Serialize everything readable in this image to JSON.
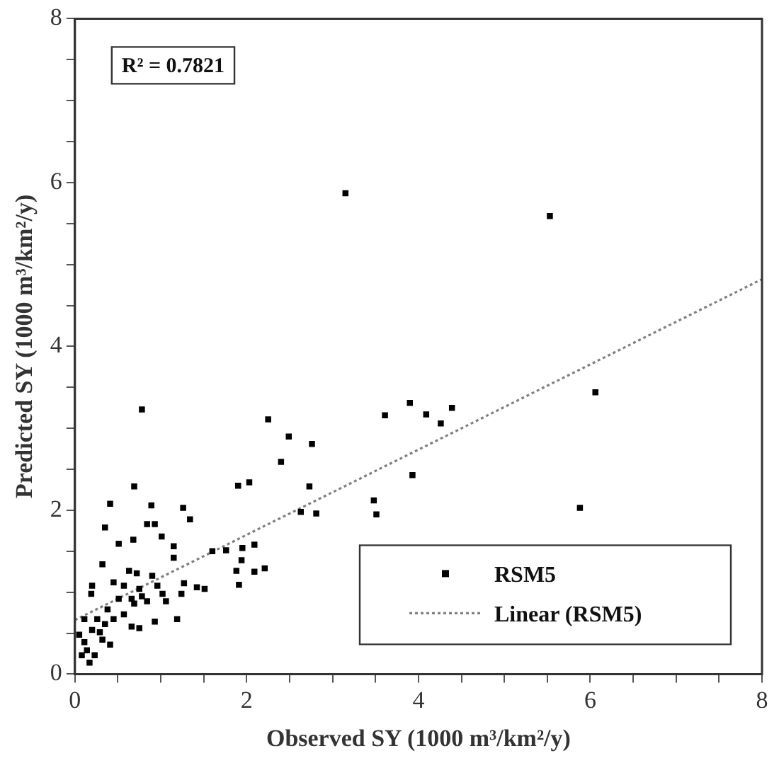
{
  "chart_data": {
    "type": "scatter",
    "xlabel": "Observed SY (1000 m³/km²/y)",
    "ylabel": "Predicted SY (1000 m³/km²/y)",
    "xlim": [
      0,
      8
    ],
    "ylim": [
      0,
      8
    ],
    "xticks": [
      0,
      {
        "value": 0.5,
        "label": null
      },
      2,
      {
        "value": 1,
        "label": null
      },
      {
        "value": 1.5,
        "label": null
      },
      {
        "value": 2.5,
        "label": null
      },
      {
        "value": 3,
        "label": null
      },
      {
        "value": 3.5,
        "label": null
      },
      4,
      {
        "value": 4.5,
        "label": null
      },
      {
        "value": 5,
        "label": null
      },
      {
        "value": 5.5,
        "label": null
      },
      6,
      {
        "value": 6.5,
        "label": null
      },
      {
        "value": 7,
        "label": null
      },
      {
        "value": 7.5,
        "label": null
      },
      8
    ],
    "yticks": [
      0,
      {
        "value": 0.5,
        "label": null
      },
      {
        "value": 1,
        "label": null
      },
      {
        "value": 1.5,
        "label": null
      },
      2,
      {
        "value": 2.5,
        "label": null
      },
      {
        "value": 3,
        "label": null
      },
      {
        "value": 3.5,
        "label": null
      },
      4,
      {
        "value": 4.5,
        "label": null
      },
      {
        "value": 5,
        "label": null
      },
      {
        "value": 5.5,
        "label": null
      },
      6,
      {
        "value": 6.5,
        "label": null
      },
      {
        "value": 7,
        "label": null
      },
      {
        "value": 7.5,
        "label": null
      },
      8
    ],
    "grid": false,
    "legend": "bottom right",
    "annotations": [
      "R² = 0.7821"
    ],
    "series": [
      {
        "name": "RSM5",
        "color": "#000000",
        "marker": "square",
        "x": [
          3.15,
          5.53,
          6.06,
          5.88,
          0.78,
          2.25,
          2.49,
          2.76,
          2.4,
          2.73,
          2.03,
          1.9,
          2.63,
          2.81,
          3.61,
          3.9,
          4.09,
          4.26,
          4.39,
          3.93,
          3.48,
          3.51,
          0.69,
          0.41,
          0.89,
          1.26,
          1.34,
          0.35,
          0.84,
          0.93,
          1.01,
          0.51,
          0.68,
          1.15,
          1.15,
          0.32,
          1.6,
          1.76,
          1.95,
          2.09,
          1.94,
          1.88,
          2.09,
          2.21,
          1.91,
          1.27,
          1.42,
          1.51,
          1.19,
          0.2,
          0.19,
          0.63,
          0.72,
          0.9,
          0.45,
          0.57,
          0.75,
          0.96,
          1.02,
          0.51,
          0.66,
          0.84,
          1.06,
          1.24,
          0.38,
          0.57,
          0.75,
          0.93,
          0.66,
          0.26,
          0.35,
          0.45,
          0.2,
          0.32,
          0.41,
          0.14,
          0.08,
          0.23,
          0.17,
          0.29,
          0.11,
          0.05,
          0.69,
          0.78,
          0.11
        ],
        "values": [
          5.87,
          5.59,
          3.44,
          2.03,
          3.23,
          3.11,
          2.9,
          2.81,
          2.59,
          2.29,
          2.34,
          2.3,
          1.98,
          1.96,
          3.16,
          3.31,
          3.17,
          3.06,
          3.25,
          2.43,
          2.12,
          1.95,
          2.29,
          2.08,
          2.06,
          2.03,
          1.89,
          1.79,
          1.83,
          1.83,
          1.68,
          1.59,
          1.64,
          1.56,
          1.42,
          1.34,
          1.5,
          1.51,
          1.54,
          1.58,
          1.39,
          1.26,
          1.25,
          1.29,
          1.09,
          1.11,
          1.06,
          1.04,
          0.67,
          1.08,
          0.98,
          1.26,
          1.23,
          1.2,
          1.12,
          1.08,
          1.04,
          1.08,
          0.98,
          0.92,
          0.92,
          0.89,
          0.89,
          0.98,
          0.79,
          0.73,
          0.56,
          0.64,
          0.58,
          0.67,
          0.61,
          0.67,
          0.54,
          0.42,
          0.36,
          0.29,
          0.23,
          0.23,
          0.14,
          0.51,
          0.39,
          0.48,
          0.86,
          0.95,
          0.67
        ]
      },
      {
        "name": "Linear (RSM5)",
        "type": "line",
        "line_style": "dotted",
        "color": "#808080",
        "x": [
          0,
          8
        ],
        "values": [
          0.66,
          4.82
        ]
      }
    ]
  }
}
